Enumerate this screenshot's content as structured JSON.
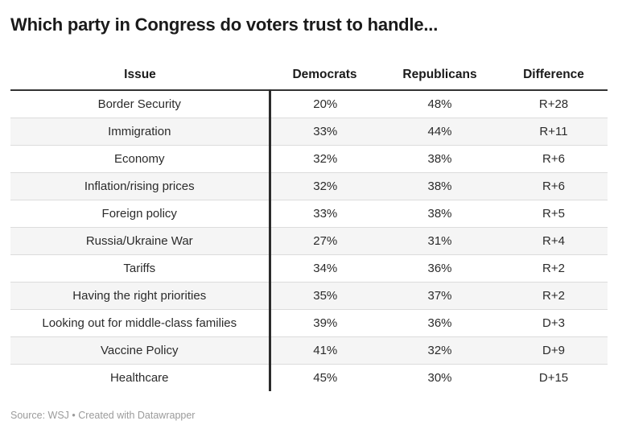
{
  "title": "Which party in Congress do voters trust to handle...",
  "table": {
    "columns": [
      "Issue",
      "Democrats",
      "Republicans",
      "Difference"
    ],
    "rows": [
      [
        "Border Security",
        "20%",
        "48%",
        "R+28"
      ],
      [
        "Immigration",
        "33%",
        "44%",
        "R+11"
      ],
      [
        "Economy",
        "32%",
        "38%",
        "R+6"
      ],
      [
        "Inflation/rising prices",
        "32%",
        "38%",
        "R+6"
      ],
      [
        "Foreign policy",
        "33%",
        "38%",
        "R+5"
      ],
      [
        "Russia/Ukraine War",
        "27%",
        "31%",
        "R+4"
      ],
      [
        "Tariffs",
        "34%",
        "36%",
        "R+2"
      ],
      [
        "Having the right priorities",
        "35%",
        "37%",
        "R+2"
      ],
      [
        "Looking out for middle-class families",
        "39%",
        "36%",
        "D+3"
      ],
      [
        "Vaccine Policy",
        "41%",
        "32%",
        "D+9"
      ],
      [
        "Healthcare",
        "45%",
        "30%",
        "D+15"
      ]
    ]
  },
  "footer": "Source: WSJ • Created with Datawrapper",
  "colors": {
    "title_text": "#1a1a1a",
    "body_text": "#2b2b2b",
    "header_rule": "#333333",
    "column_divider": "#2b2b2b",
    "row_separator": "#dcdcdc",
    "stripe_bg": "#f5f5f5",
    "footer_text": "#9b9b9b",
    "background": "#ffffff"
  },
  "chart_data": {
    "type": "table",
    "title": "Which party in Congress do voters trust to handle...",
    "columns": [
      "Issue",
      "Democrats",
      "Republicans",
      "Difference"
    ],
    "categories": [
      "Border Security",
      "Immigration",
      "Economy",
      "Inflation/rising prices",
      "Foreign policy",
      "Russia/Ukraine War",
      "Tariffs",
      "Having the right priorities",
      "Looking out for middle-class families",
      "Vaccine Policy",
      "Healthcare"
    ],
    "series": [
      {
        "name": "Democrats",
        "values": [
          20,
          33,
          32,
          32,
          33,
          27,
          34,
          35,
          39,
          41,
          45
        ]
      },
      {
        "name": "Republicans",
        "values": [
          48,
          44,
          38,
          38,
          38,
          31,
          36,
          37,
          36,
          32,
          30
        ]
      }
    ],
    "difference": [
      "R+28",
      "R+11",
      "R+6",
      "R+6",
      "R+5",
      "R+4",
      "R+2",
      "R+2",
      "D+3",
      "D+9",
      "D+15"
    ],
    "value_format": "percent",
    "source": "Source: WSJ • Created with Datawrapper",
    "layout": {
      "striped_rows": true,
      "all_cells_centered": true,
      "grid": "horizontal-separators"
    }
  }
}
